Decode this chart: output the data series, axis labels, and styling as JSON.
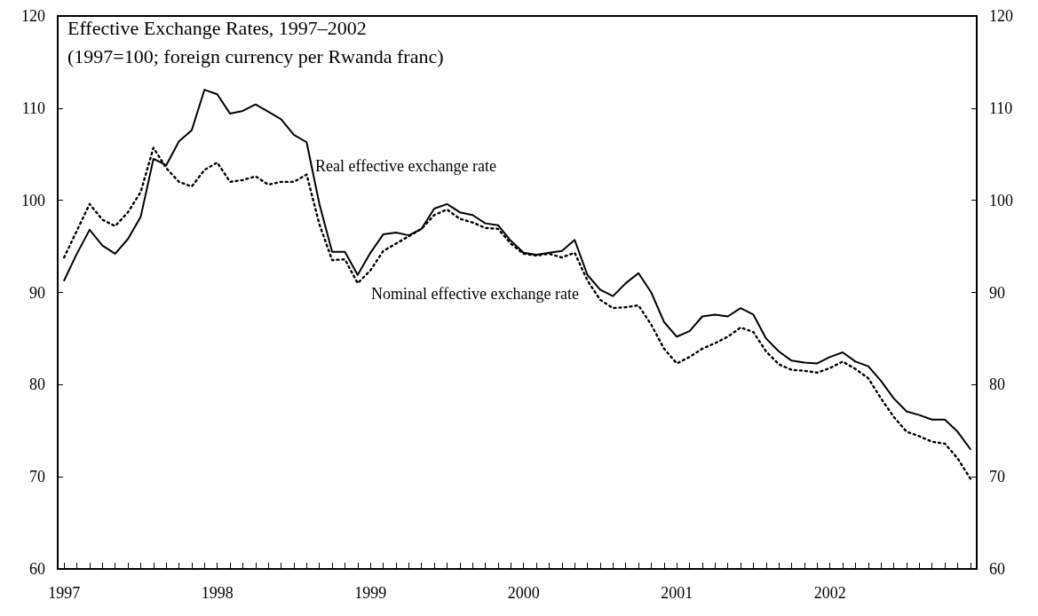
{
  "chart_data": {
    "type": "line",
    "title": "Effective Exchange Rates, 1997–2002",
    "subtitle": "(1997=100; foreign currency per Rwanda franc)",
    "categories": [
      "1997",
      null,
      null,
      null,
      null,
      null,
      null,
      null,
      null,
      null,
      null,
      null,
      "1998",
      null,
      null,
      null,
      null,
      null,
      null,
      null,
      null,
      null,
      null,
      null,
      "1999",
      null,
      null,
      null,
      null,
      null,
      null,
      null,
      null,
      null,
      null,
      null,
      "2000",
      null,
      null,
      null,
      null,
      null,
      null,
      null,
      null,
      null,
      null,
      null,
      "2001",
      null,
      null,
      null,
      null,
      null,
      null,
      null,
      null,
      null,
      null,
      null,
      "2002",
      null,
      null,
      null,
      null,
      null,
      null,
      null,
      null,
      null,
      null,
      null
    ],
    "series": [
      {
        "name": "Real effective exchange rate",
        "color": "#000000",
        "line_style": "solid",
        "values": [
          91.3,
          94.2,
          96.8,
          95.1,
          94.2,
          95.8,
          98.2,
          104.5,
          103.8,
          106.4,
          107.6,
          112.0,
          111.5,
          109.4,
          109.7,
          110.4,
          109.6,
          108.8,
          107.1,
          106.3,
          99.6,
          94.4,
          94.4,
          91.9,
          94.3,
          96.3,
          96.5,
          96.2,
          96.9,
          99.1,
          99.6,
          98.7,
          98.4,
          97.5,
          97.3,
          95.6,
          94.3,
          94.1,
          94.3,
          94.5,
          95.7,
          91.9,
          90.3,
          89.6,
          91.0,
          92.1,
          90.0,
          86.8,
          85.2,
          85.8,
          87.4,
          87.6,
          87.4,
          88.3,
          87.6,
          85.0,
          83.6,
          82.6,
          82.4,
          82.3,
          83.0,
          83.5,
          82.5,
          82.0,
          80.4,
          78.5,
          77.1,
          76.7,
          76.2,
          76.2,
          74.9,
          73.0
        ]
      },
      {
        "name": "Nominal effective exchange rate",
        "color": "#000000",
        "line_style": "dotted",
        "values": [
          93.8,
          96.7,
          99.6,
          97.9,
          97.2,
          98.7,
          100.9,
          105.7,
          103.5,
          102.0,
          101.5,
          103.3,
          104.1,
          102.0,
          102.2,
          102.6,
          101.7,
          102.0,
          102.0,
          102.8,
          97.4,
          93.5,
          93.6,
          91.0,
          92.4,
          94.5,
          95.3,
          96.1,
          96.9,
          98.4,
          99.0,
          98.0,
          97.6,
          97.0,
          96.9,
          95.3,
          94.2,
          94.0,
          94.2,
          93.8,
          94.3,
          91.3,
          89.2,
          88.3,
          88.4,
          88.6,
          86.5,
          83.9,
          82.3,
          83.0,
          83.9,
          84.5,
          85.2,
          86.2,
          85.7,
          83.6,
          82.2,
          81.6,
          81.5,
          81.3,
          81.8,
          82.5,
          81.7,
          80.7,
          78.5,
          76.5,
          74.9,
          74.4,
          73.8,
          73.6,
          72.0,
          69.8
        ]
      }
    ],
    "ylim": [
      60,
      120
    ],
    "yticks": [
      60,
      70,
      80,
      90,
      100,
      110,
      120
    ],
    "y2lim": [
      60,
      120
    ],
    "y2ticks": [
      60,
      70,
      80,
      90,
      100,
      110,
      120
    ],
    "marker": "none",
    "grid": false,
    "legend": false
  }
}
